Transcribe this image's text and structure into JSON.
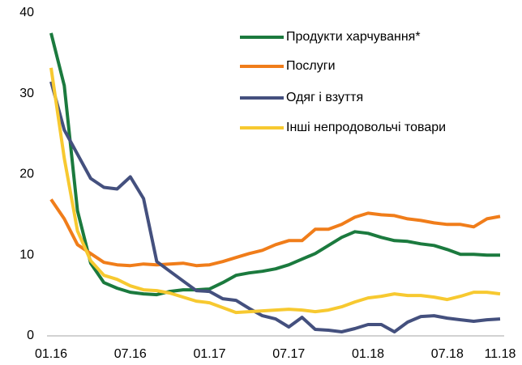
{
  "chart_data": {
    "type": "line",
    "categories": [
      "01.16",
      null,
      null,
      null,
      null,
      null,
      "07.16",
      null,
      null,
      null,
      null,
      null,
      "01.17",
      null,
      null,
      null,
      null,
      null,
      "07.17",
      null,
      null,
      null,
      null,
      null,
      "01.18",
      null,
      null,
      null,
      null,
      null,
      "07.18",
      null,
      null,
      null,
      "11.18"
    ],
    "series": [
      {
        "name": "Продукти харчування*",
        "color": "#1b7a3e",
        "values": [
          37.5,
          31,
          15.5,
          9,
          6.6,
          5.9,
          5.4,
          5.2,
          5.1,
          5.5,
          5.7,
          5.7,
          5.8,
          6.6,
          7.5,
          7.8,
          8.0,
          8.3,
          8.8,
          9.5,
          10.2,
          11.2,
          12.2,
          12.9,
          12.7,
          12.2,
          11.8,
          11.7,
          11.4,
          11.2,
          10.7,
          10.1,
          10.1,
          10.0,
          10.0
        ]
      },
      {
        "name": "Послуги",
        "color": "#f07d1a",
        "values": [
          16.9,
          14.5,
          11.3,
          10.2,
          9.1,
          8.8,
          8.7,
          8.9,
          8.8,
          8.9,
          9.0,
          8.7,
          8.8,
          9.2,
          9.7,
          10.2,
          10.6,
          11.3,
          11.8,
          11.8,
          13.2,
          13.2,
          13.8,
          14.7,
          15.2,
          15.0,
          14.9,
          14.5,
          14.3,
          14.0,
          13.8,
          13.8,
          13.5,
          14.5,
          14.8
        ]
      },
      {
        "name": "Одяг і взуття",
        "color": "#44507e",
        "values": [
          31.5,
          25.5,
          22.5,
          19.5,
          18.4,
          18.2,
          19.7,
          17.0,
          9.2,
          8.0,
          6.8,
          5.6,
          5.5,
          4.6,
          4.4,
          3.4,
          2.5,
          2.1,
          1.1,
          2.3,
          0.8,
          0.7,
          0.5,
          0.9,
          1.4,
          1.4,
          0.5,
          1.7,
          2.4,
          2.5,
          2.2,
          2.0,
          1.8,
          2.0,
          2.1
        ]
      },
      {
        "name": "Інші непродовольчі товари",
        "color": "#f7c930",
        "values": [
          33.2,
          22,
          13,
          9.3,
          7.5,
          7.0,
          6.2,
          5.7,
          5.6,
          5.3,
          4.8,
          4.3,
          4.1,
          3.5,
          2.9,
          3.0,
          3.1,
          3.2,
          3.3,
          3.2,
          3.0,
          3.2,
          3.6,
          4.2,
          4.7,
          4.9,
          5.2,
          5.0,
          5.0,
          4.8,
          4.5,
          4.9,
          5.4,
          5.4,
          5.2
        ]
      }
    ],
    "ylim": [
      0,
      40
    ],
    "yticks": [
      0,
      10,
      20,
      30,
      40
    ],
    "grid": false,
    "legend": "upper right"
  }
}
